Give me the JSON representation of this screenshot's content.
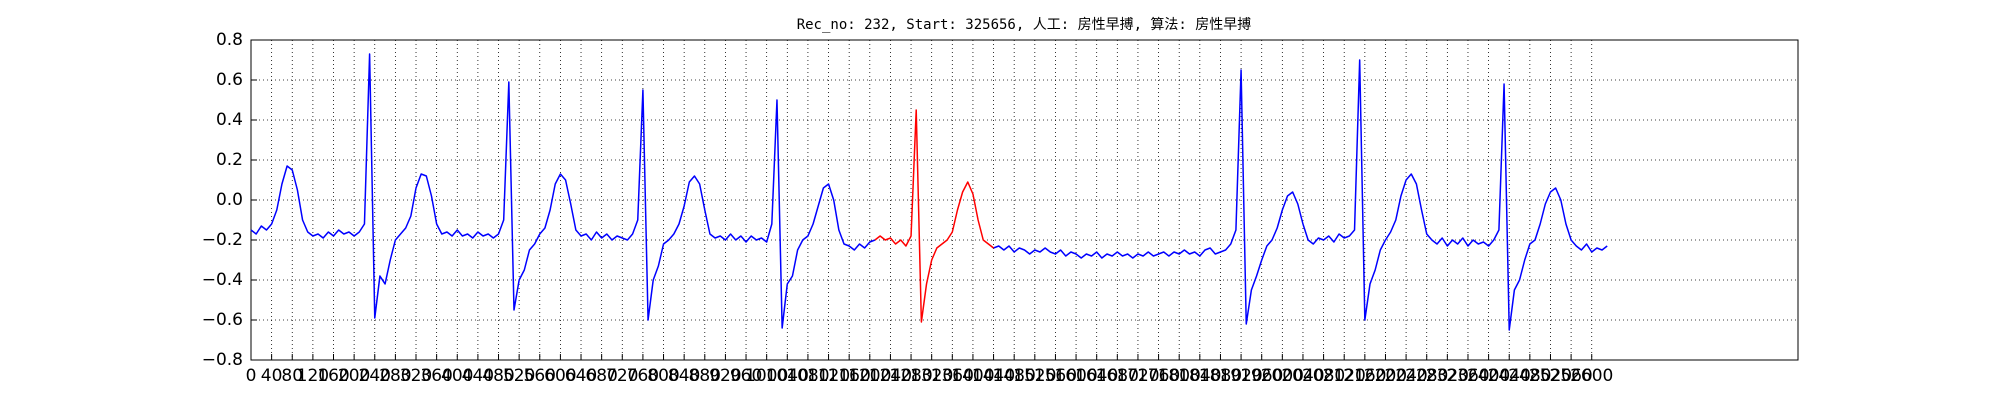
{
  "chart_data": {
    "type": "line",
    "title": "Rec_no: 232, Start: 325656, 人工: 房性早搏, 算法: 房性早搏",
    "xlim": [
      0,
      3000
    ],
    "ylim": [
      -0.8,
      0.8
    ],
    "xticks": [
      0,
      40,
      80,
      120,
      160,
      200,
      240,
      280,
      320,
      360,
      400,
      440,
      480,
      520,
      560,
      600,
      640,
      680,
      720,
      760,
      800,
      840,
      880,
      920,
      960,
      1000,
      1040,
      1080,
      1120,
      1160,
      1200,
      1240,
      1280,
      1320,
      1360,
      1400,
      1440,
      1480,
      1520,
      1560,
      1600,
      1640,
      1680,
      1720,
      1760,
      1800,
      1840,
      1880,
      1920,
      1960,
      2000,
      2040,
      2080,
      2120,
      2160,
      2200,
      2240,
      2280,
      2320,
      2360,
      2400,
      2440,
      2480,
      2520,
      2560,
      2600
    ],
    "yticks": [
      {
        "value": -0.8,
        "label": "−0.8"
      },
      {
        "value": -0.6,
        "label": "−0.6"
      },
      {
        "value": -0.4,
        "label": "−0.4"
      },
      {
        "value": -0.2,
        "label": "−0.2"
      },
      {
        "value": 0,
        "label": "0.0"
      },
      0.2,
      0.4,
      0.6,
      0.8
    ],
    "grid": true,
    "series": [
      {
        "color": "#0000ff",
        "x": [
          0,
          10,
          20,
          30,
          40,
          50,
          60,
          70,
          80,
          90,
          100,
          110,
          120,
          130,
          140,
          150,
          160,
          170,
          180,
          190,
          200,
          210,
          220,
          230,
          240,
          250,
          260,
          270,
          280,
          290,
          300,
          310,
          320,
          330,
          340,
          350,
          360,
          370,
          380,
          390,
          400,
          410,
          420,
          430,
          440,
          450,
          460,
          470,
          480,
          490,
          500,
          510,
          520,
          530,
          540,
          550,
          560,
          570,
          580,
          590,
          600,
          610,
          620,
          630,
          640,
          650,
          660,
          670,
          680,
          690,
          700,
          710,
          720,
          730,
          740,
          750,
          760,
          770,
          780,
          790,
          800,
          810,
          820,
          830,
          840,
          850,
          860,
          870,
          880,
          890,
          900,
          910,
          920,
          930,
          940,
          950,
          960,
          970,
          980,
          990,
          1000,
          1010,
          1020,
          1030,
          1040,
          1050,
          1060,
          1070,
          1080,
          1090,
          1100,
          1110,
          1120,
          1130,
          1140,
          1150,
          1160,
          1170,
          1180,
          1190,
          1200,
          1210,
          1220,
          1230,
          1240,
          1250,
          1260,
          1270,
          1280,
          1290,
          1300,
          1310,
          1320,
          1330,
          1340,
          1350,
          1360,
          1370,
          1380,
          1390,
          1400,
          1410,
          1420,
          1430,
          1440,
          1450,
          1460,
          1470,
          1480,
          1490,
          1500,
          1510,
          1520,
          1530,
          1540,
          1550,
          1560,
          1570,
          1580,
          1590,
          1600,
          1610,
          1620,
          1630,
          1640,
          1650,
          1660,
          1670,
          1680,
          1690,
          1700,
          1710,
          1720,
          1730,
          1740,
          1750,
          1760,
          1770,
          1780,
          1790,
          1800,
          1810,
          1820,
          1830,
          1840,
          1850,
          1860,
          1870,
          1880,
          1890,
          1900,
          1910,
          1920,
          1930,
          1940,
          1950,
          1960,
          1970,
          1980,
          1990,
          2000,
          2010,
          2020,
          2030,
          2040,
          2050,
          2060,
          2070,
          2080,
          2090,
          2100,
          2110,
          2120,
          2130,
          2140,
          2150,
          2160,
          2170,
          2180,
          2190,
          2200,
          2210,
          2220,
          2230,
          2240,
          2250,
          2260,
          2270,
          2280,
          2290,
          2300,
          2310,
          2320,
          2330,
          2340,
          2350,
          2360,
          2370,
          2380,
          2390,
          2400,
          2410,
          2420,
          2430,
          2440,
          2450,
          2460,
          2470,
          2480,
          2490,
          2500,
          2510,
          2520,
          2530,
          2540,
          2550,
          2560,
          2570,
          2580,
          2590,
          2600,
          2610,
          2620,
          2630
        ],
        "values": [
          -0.15,
          -0.17,
          -0.13,
          -0.15,
          -0.12,
          -0.05,
          0.08,
          0.17,
          0.15,
          0.05,
          -0.1,
          -0.16,
          -0.18,
          -0.17,
          -0.19,
          -0.16,
          -0.18,
          -0.15,
          -0.17,
          -0.16,
          -0.18,
          -0.16,
          -0.12,
          0.73,
          -0.59,
          -0.38,
          -0.42,
          -0.3,
          -0.2,
          -0.17,
          -0.14,
          -0.08,
          0.06,
          0.13,
          0.12,
          0.02,
          -0.12,
          -0.17,
          -0.16,
          -0.18,
          -0.15,
          -0.18,
          -0.17,
          -0.19,
          -0.16,
          -0.18,
          -0.17,
          -0.19,
          -0.17,
          -0.1,
          0.59,
          -0.55,
          -0.4,
          -0.35,
          -0.25,
          -0.22,
          -0.17,
          -0.14,
          -0.05,
          0.08,
          0.13,
          0.1,
          -0.02,
          -0.15,
          -0.18,
          -0.17,
          -0.2,
          -0.16,
          -0.19,
          -0.17,
          -0.2,
          -0.18,
          -0.19,
          -0.2,
          -0.17,
          -0.1,
          0.55,
          -0.6,
          -0.4,
          -0.33,
          -0.22,
          -0.2,
          -0.17,
          -0.12,
          -0.03,
          0.09,
          0.12,
          0.08,
          -0.05,
          -0.17,
          -0.19,
          -0.18,
          -0.2,
          -0.17,
          -0.2,
          -0.18,
          -0.21,
          -0.18,
          -0.2,
          -0.19,
          -0.21,
          -0.12,
          0.5,
          -0.64,
          -0.42,
          -0.38,
          -0.25,
          -0.2,
          -0.18,
          -0.12,
          -0.03,
          0.06,
          0.08,
          0.0,
          -0.15,
          -0.22,
          -0.23,
          -0.25,
          -0.22,
          -0.24,
          -0.21,
          -0.2,
          null,
          null,
          null,
          null,
          null,
          null,
          null,
          null,
          null,
          null,
          null,
          null,
          null,
          null,
          null,
          null,
          null,
          null,
          null,
          null,
          null,
          null,
          -0.24,
          -0.23,
          -0.25,
          -0.23,
          -0.26,
          -0.24,
          -0.25,
          -0.27,
          -0.25,
          -0.26,
          -0.24,
          -0.26,
          -0.27,
          -0.25,
          -0.28,
          -0.26,
          -0.27,
          -0.29,
          -0.27,
          -0.28,
          -0.26,
          -0.29,
          -0.27,
          -0.28,
          -0.26,
          -0.28,
          -0.27,
          -0.29,
          -0.27,
          -0.28,
          -0.26,
          -0.28,
          -0.27,
          -0.26,
          -0.28,
          -0.26,
          -0.27,
          -0.25,
          -0.27,
          -0.26,
          -0.28,
          -0.25,
          -0.24,
          -0.27,
          -0.26,
          -0.25,
          -0.22,
          -0.15,
          0.65,
          -0.62,
          -0.45,
          -0.38,
          -0.3,
          -0.23,
          -0.2,
          -0.14,
          -0.05,
          0.02,
          0.04,
          -0.02,
          -0.12,
          -0.2,
          -0.22,
          -0.19,
          -0.2,
          -0.18,
          -0.21,
          -0.17,
          -0.19,
          -0.18,
          -0.15,
          0.7,
          -0.6,
          -0.42,
          -0.35,
          -0.25,
          -0.2,
          -0.16,
          -0.1,
          0.02,
          0.1,
          0.13,
          0.08,
          -0.05,
          -0.17,
          -0.2,
          -0.22,
          -0.19,
          -0.23,
          -0.2,
          -0.22,
          -0.19,
          -0.23,
          -0.2,
          -0.22,
          -0.21,
          -0.23,
          -0.2,
          -0.15,
          0.58,
          -0.65,
          -0.45,
          -0.4,
          -0.3,
          -0.22,
          -0.2,
          -0.12,
          -0.02,
          0.04,
          0.06,
          0.0,
          -0.12,
          -0.2,
          -0.23,
          -0.25,
          -0.22,
          -0.26,
          -0.24,
          -0.25,
          -0.23
        ]
      },
      {
        "color": "#ff0000",
        "x": [
          1210,
          1220,
          1230,
          1240,
          1250,
          1260,
          1270,
          1280,
          1290,
          1300,
          1310,
          1320,
          1330,
          1340,
          1350,
          1360,
          1370,
          1380,
          1390,
          1400,
          1410,
          1420,
          1430,
          1440
        ],
        "values": [
          -0.2,
          -0.18,
          -0.2,
          -0.19,
          -0.22,
          -0.2,
          -0.23,
          -0.18,
          0.45,
          -0.61,
          -0.42,
          -0.3,
          -0.24,
          -0.22,
          -0.2,
          -0.16,
          -0.05,
          0.04,
          0.09,
          0.03,
          -0.1,
          -0.2,
          -0.22,
          -0.24
        ]
      }
    ]
  }
}
